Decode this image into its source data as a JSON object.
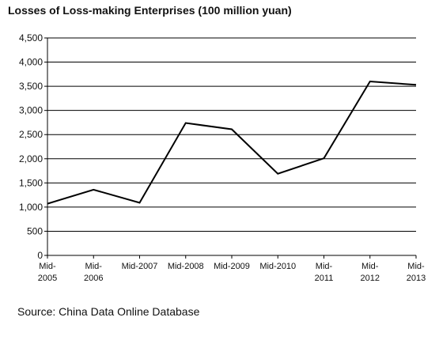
{
  "title": "Losses of Loss-making Enterprises (100 million yuan)",
  "source": "Source: China Data Online Database",
  "chart_data": {
    "type": "line",
    "title": "Losses of Loss-making Enterprises (100 million yuan)",
    "xlabel": "",
    "ylabel": "",
    "ylim": [
      0,
      4500
    ],
    "grid": true,
    "categories": [
      [
        "Mid-",
        "2005"
      ],
      [
        "Mid-",
        "2006"
      ],
      [
        "Mid-2007"
      ],
      [
        "Mid-2008"
      ],
      [
        "Mid-2009"
      ],
      [
        "Mid-2010"
      ],
      [
        "Mid-",
        "2011"
      ],
      [
        "Mid-",
        "2012"
      ],
      [
        "Mid-",
        "2013"
      ]
    ],
    "yticks": [
      "0",
      "500",
      "1,000",
      "1,500",
      "2,000",
      "2,500",
      "3,000",
      "3,500",
      "4,000",
      "4,500"
    ],
    "series": [
      {
        "values": [
          1070,
          1360,
          1090,
          2740,
          2610,
          1690,
          2010,
          3600,
          3530
        ]
      }
    ],
    "line_color": "#000000"
  }
}
